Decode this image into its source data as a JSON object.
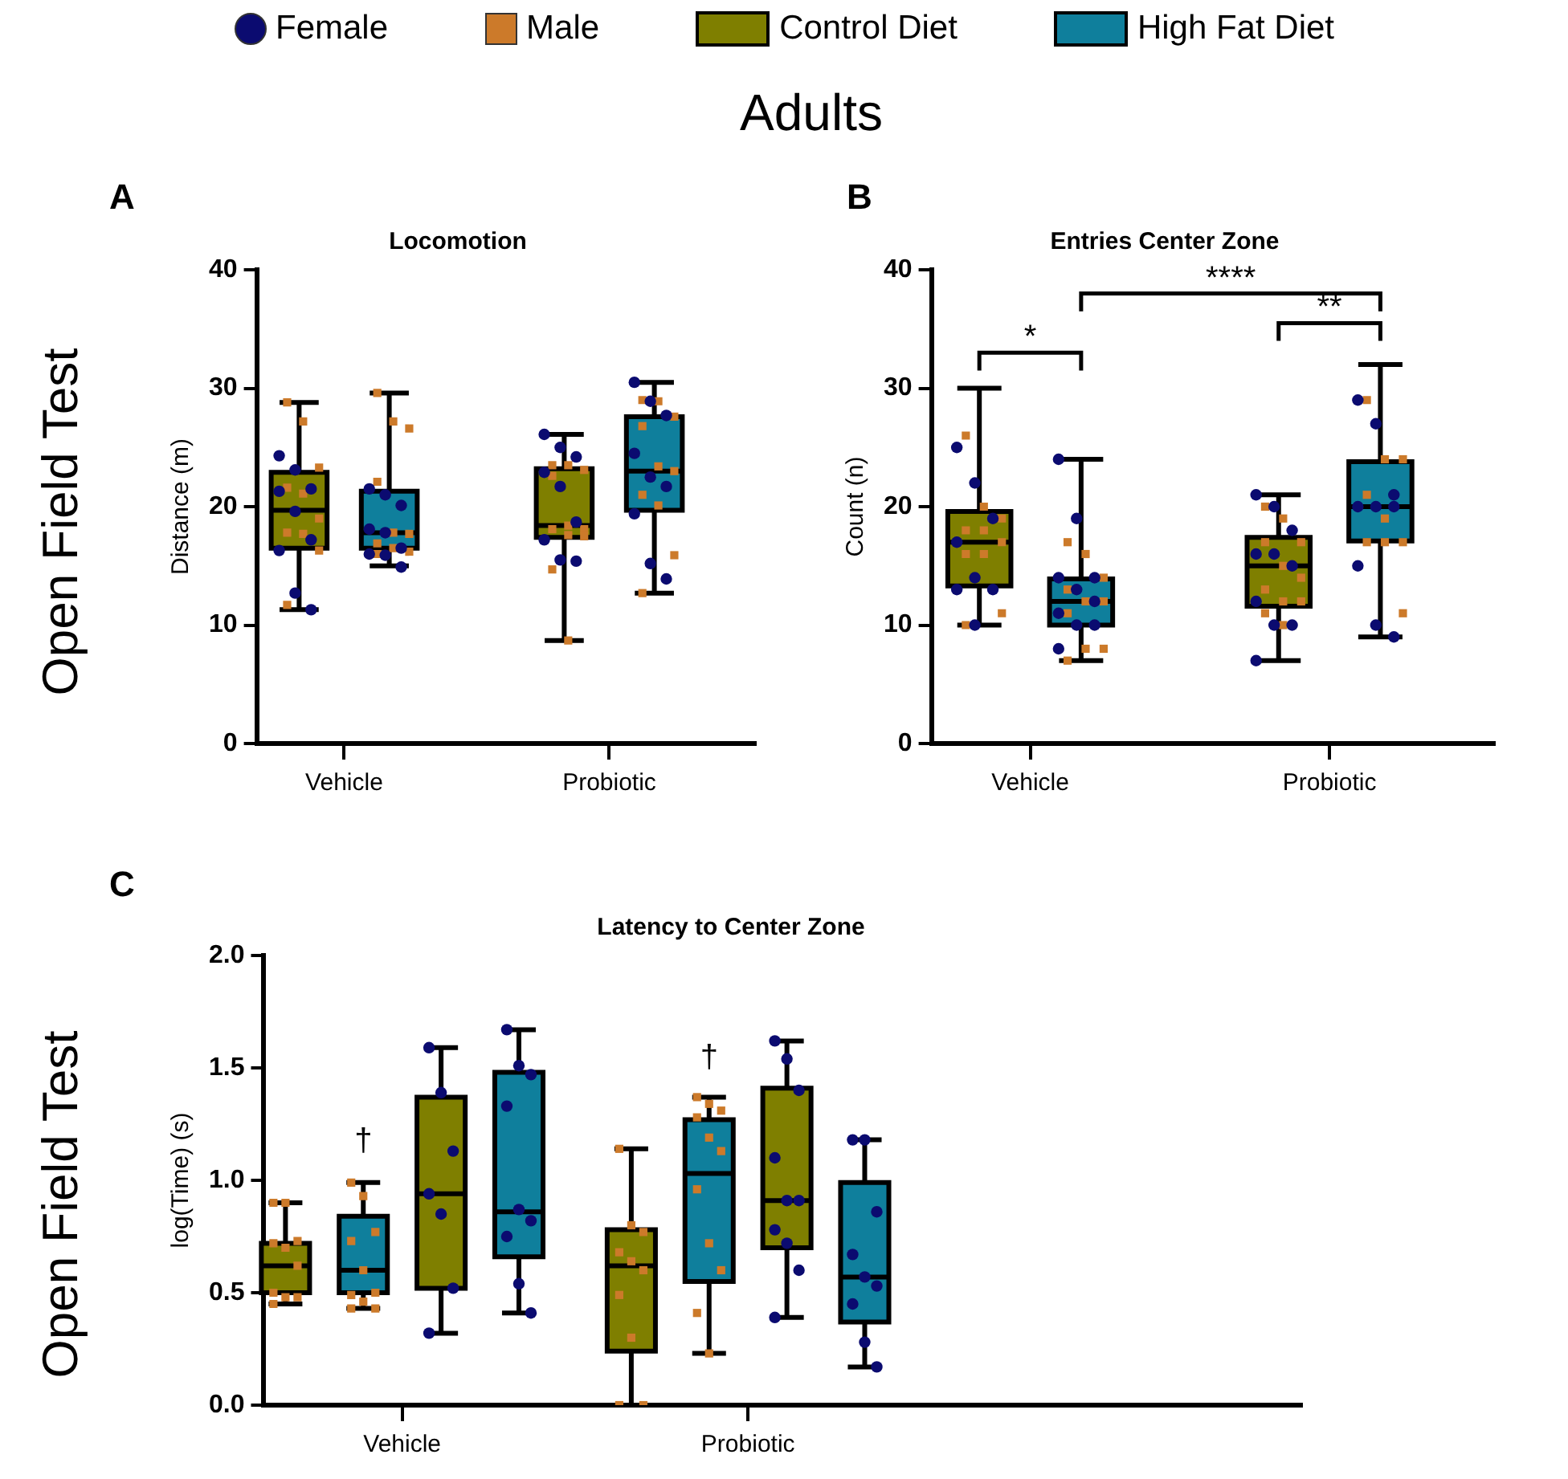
{
  "chart_data": [
    {
      "type": "box",
      "title": "Locomotion",
      "ylabel": "Distance (m)",
      "legend": "top",
      "categories": [
        "Vehicle",
        "Probiotic"
      ],
      "ylim": [
        0,
        40
      ],
      "yticks": [
        0,
        10,
        20,
        30,
        40
      ],
      "annotations": [
        "Adults",
        "A",
        "Open Field Test"
      ],
      "series": [
        {
          "type": "scatter",
          "name": "Female",
          "color": "#0b0b70",
          "marker": "circle",
          "x": [
            "Vehicle",
            "Vehicle",
            "Vehicle",
            "Vehicle",
            "Vehicle",
            "Vehicle",
            "Vehicle",
            "Vehicle",
            "Vehicle",
            "Probiotic",
            "Probiotic",
            "Probiotic",
            "Probiotic",
            "Probiotic",
            "Probiotic",
            "Probiotic",
            "Probiotic",
            "Probiotic"
          ],
          "values": [
            24.3,
            23.1,
            21.5,
            21.3,
            19.6,
            17.2,
            16.3,
            12.7,
            11.3,
            26.1,
            25.0,
            24.2,
            22.9,
            21.7,
            18.7,
            17.2,
            15.5,
            15.4
          ]
        },
        {
          "type": "scatter",
          "name": "Male",
          "color": "#cc7a2a",
          "marker": "square",
          "x": [
            "Vehicle",
            "Vehicle",
            "Vehicle",
            "Vehicle",
            "Vehicle",
            "Vehicle",
            "Vehicle",
            "Vehicle",
            "Vehicle",
            "Vehicle",
            "Probiotic",
            "Probiotic",
            "Probiotic",
            "Probiotic",
            "Probiotic",
            "Probiotic",
            "Probiotic",
            "Probiotic",
            "Probiotic",
            "Probiotic",
            "Probiotic"
          ],
          "values": [
            28.8,
            27.2,
            23.3,
            21.6,
            21.1,
            19.0,
            17.8,
            17.7,
            16.3,
            11.7,
            23.5,
            23.5,
            23.1,
            22.6,
            18.4,
            18.1,
            18.1,
            17.6,
            17.5,
            14.7,
            8.7
          ]
        },
        {
          "name": "Control Diet",
          "color": "#7f7f00",
          "boxes": [
            {
              "low": 11.3,
              "q1": 16.5,
              "median": 19.7,
              "q3": 22.9,
              "high": 28.8
            },
            {
              "low": 8.7,
              "q1": 17.4,
              "median": 18.4,
              "q3": 23.2,
              "high": 26.1
            }
          ]
        },
        {
          "name": "High Fat Diet",
          "color": "#0f7f9c",
          "boxes": [
            {
              "low": 15.0,
              "q1": 16.5,
              "median": 17.8,
              "q3": 21.3,
              "high": 29.6
            },
            {
              "low": 12.7,
              "q1": 19.7,
              "median": 23.0,
              "q3": 27.6,
              "high": 30.5
            }
          ]
        },
        {
          "type": "scatter",
          "color": "#0b0b70",
          "marker": "circle",
          "x": [
            "Vehicle",
            "Vehicle",
            "Vehicle",
            "Vehicle",
            "Vehicle",
            "Vehicle",
            "Vehicle",
            "Vehicle",
            "Vehicle",
            "Probiotic",
            "Probiotic",
            "Probiotic",
            "Probiotic",
            "Probiotic",
            "Probiotic",
            "Probiotic",
            "Probiotic",
            "Probiotic"
          ],
          "values": [
            21.5,
            21.0,
            20.1,
            18.1,
            17.8,
            16.5,
            16.0,
            15.9,
            14.9,
            30.5,
            28.9,
            27.7,
            24.5,
            22.5,
            21.7,
            19.4,
            15.2,
            13.9
          ]
        },
        {
          "type": "scatter",
          "color": "#cc7a2a",
          "marker": "square",
          "x": [
            "Vehicle",
            "Vehicle",
            "Vehicle",
            "Vehicle",
            "Vehicle",
            "Vehicle",
            "Vehicle",
            "Vehicle",
            "Vehicle",
            "Vehicle",
            "Probiotic",
            "Probiotic",
            "Probiotic",
            "Probiotic",
            "Probiotic",
            "Probiotic",
            "Probiotic",
            "Probiotic",
            "Probiotic",
            "Probiotic"
          ],
          "values": [
            29.6,
            27.2,
            26.6,
            22.1,
            17.8,
            17.7,
            16.9,
            16.5,
            16.2,
            16.0,
            29.0,
            28.9,
            27.6,
            26.8,
            23.4,
            23.0,
            21.0,
            20.1,
            15.9,
            12.7
          ]
        }
      ]
    },
    {
      "type": "box",
      "title": "Entries Center Zone",
      "ylabel": "Count (n)",
      "categories": [
        "Vehicle",
        "Probiotic"
      ],
      "ylim": [
        0,
        40
      ],
      "yticks": [
        0,
        10,
        20,
        30,
        40
      ],
      "annotations": [
        "B",
        "*",
        "****",
        "**"
      ],
      "series": [
        {
          "color": "#7f7f00",
          "boxes": [
            {
              "low": 10,
              "q1": 13.3,
              "median": 17,
              "q3": 19.6,
              "high": 30
            },
            {
              "low": 7,
              "q1": 11.6,
              "median": 15,
              "q3": 17.4,
              "high": 21
            }
          ]
        },
        {
          "color": "#0f7f9c",
          "boxes": [
            {
              "low": 7,
              "q1": 10,
              "median": 12,
              "q3": 13.9,
              "high": 24
            },
            {
              "low": 9,
              "q1": 17.1,
              "median": 20,
              "q3": 23.8,
              "high": 32
            }
          ]
        },
        {
          "type": "scatter",
          "color": "#0b0b70",
          "marker": "circle",
          "x": [
            "Vehicle",
            "Vehicle",
            "Vehicle",
            "Vehicle",
            "Vehicle",
            "Vehicle",
            "Vehicle",
            "Vehicle",
            "Probiotic",
            "Probiotic",
            "Probiotic",
            "Probiotic",
            "Probiotic",
            "Probiotic",
            "Probiotic",
            "Probiotic",
            "Probiotic",
            "Probiotic"
          ],
          "values": [
            25,
            22,
            19,
            17,
            14,
            13,
            13,
            10,
            21,
            20,
            18,
            16,
            16,
            15,
            12,
            10,
            10,
            7
          ]
        },
        {
          "type": "scatter",
          "color": "#cc7a2a",
          "marker": "square",
          "x": [
            "Vehicle",
            "Vehicle",
            "Vehicle",
            "Vehicle",
            "Vehicle",
            "Vehicle",
            "Vehicle",
            "Vehicle",
            "Vehicle",
            "Vehicle",
            "Probiotic",
            "Probiotic",
            "Probiotic",
            "Probiotic",
            "Probiotic",
            "Probiotic",
            "Probiotic",
            "Probiotic",
            "Probiotic",
            "Probiotic",
            "Probiotic"
          ],
          "values": [
            26,
            20,
            19,
            18,
            18,
            17,
            16,
            16,
            11,
            10,
            20,
            19,
            17,
            17,
            15,
            14,
            13,
            12,
            12,
            11,
            10
          ]
        },
        {
          "type": "scatter",
          "color": "#0b0b70",
          "marker": "circle",
          "x": [
            "Vehicle",
            "Vehicle",
            "Vehicle",
            "Vehicle",
            "Vehicle",
            "Vehicle",
            "Vehicle",
            "Vehicle",
            "Vehicle",
            "Vehicle",
            "Probiotic",
            "Probiotic",
            "Probiotic",
            "Probiotic",
            "Probiotic",
            "Probiotic",
            "Probiotic",
            "Probiotic",
            "Probiotic"
          ],
          "values": [
            24,
            19,
            14,
            14,
            13,
            12,
            11,
            10,
            10,
            8,
            29,
            27,
            21,
            20,
            20,
            20,
            15,
            10,
            9
          ]
        },
        {
          "type": "scatter",
          "color": "#cc7a2a",
          "marker": "square",
          "x": [
            "Vehicle",
            "Vehicle",
            "Vehicle",
            "Vehicle",
            "Vehicle",
            "Vehicle",
            "Vehicle",
            "Vehicle",
            "Vehicle",
            "Vehicle",
            "Probiotic",
            "Probiotic",
            "Probiotic",
            "Probiotic",
            "Probiotic",
            "Probiotic",
            "Probiotic",
            "Probiotic",
            "Probiotic"
          ],
          "values": [
            17,
            16,
            14,
            13,
            12,
            12,
            11,
            8,
            8,
            7,
            29,
            24,
            24,
            21,
            19,
            17,
            17,
            17,
            11
          ]
        }
      ]
    },
    {
      "type": "box",
      "title": "Latency to Center Zone",
      "ylabel": "log(Time) (s)",
      "categories": [
        "Vehicle",
        "Probiotic"
      ],
      "ylim": [
        0,
        2
      ],
      "yticks": [
        {
          "value": 0,
          "label": "0.0"
        },
        {
          "value": 0.5,
          "label": "0.5"
        },
        {
          "value": 1,
          "label": "1.0"
        },
        {
          "value": 1.5,
          "label": "1.5"
        },
        {
          "value": 2,
          "label": "2.0"
        }
      ],
      "annotations": [
        "C",
        "Open Field Test",
        "†",
        "†"
      ],
      "series": [
        {
          "color": "#7f7f00",
          "boxes": [
            {
              "low": 0.45,
              "q1": 0.5,
              "median": 0.62,
              "q3": 0.72,
              "high": 0.9
            },
            {
              "low": 0,
              "q1": 0.24,
              "median": 0.62,
              "q3": 0.78,
              "high": 1.14
            }
          ]
        },
        {
          "color": "#0f7f9c",
          "boxes": [
            {
              "low": 0.43,
              "q1": 0.5,
              "median": 0.6,
              "q3": 0.84,
              "high": 0.99
            },
            {
              "low": 0.23,
              "q1": 0.55,
              "median": 1.03,
              "q3": 1.27,
              "high": 1.37
            }
          ]
        },
        {
          "color": "#7f7f00",
          "boxes": [
            {
              "low": 0.32,
              "q1": 0.52,
              "median": 0.94,
              "q3": 1.37,
              "high": 1.59
            },
            {
              "low": 0.39,
              "q1": 0.7,
              "median": 0.91,
              "q3": 1.41,
              "high": 1.62
            }
          ]
        },
        {
          "color": "#0f7f9c",
          "boxes": [
            {
              "low": 0.41,
              "q1": 0.66,
              "median": 0.86,
              "q3": 1.48,
              "high": 1.67
            },
            {
              "low": 0.17,
              "q1": 0.37,
              "median": 0.57,
              "q3": 0.99,
              "high": 1.18
            }
          ]
        },
        {
          "type": "scatter",
          "color": "#cc7a2a",
          "marker": "square",
          "x": [
            "Vehicle",
            "Vehicle",
            "Vehicle",
            "Vehicle",
            "Vehicle",
            "Vehicle",
            "Vehicle",
            "Vehicle",
            "Vehicle",
            "Vehicle",
            "Probiotic",
            "Probiotic",
            "Probiotic",
            "Probiotic",
            "Probiotic",
            "Probiotic",
            "Probiotic",
            "Probiotic",
            "Probiotic",
            "Probiotic"
          ],
          "values": [
            0.9,
            0.9,
            0.73,
            0.72,
            0.7,
            0.62,
            0.5,
            0.48,
            0.48,
            0.45,
            1.14,
            0.8,
            0.77,
            0.68,
            0.64,
            0.6,
            0.49,
            0.3,
            0,
            0
          ]
        },
        {
          "type": "scatter",
          "color": "#cc7a2a",
          "marker": "square",
          "x": [
            "Vehicle",
            "Vehicle",
            "Vehicle",
            "Vehicle",
            "Vehicle",
            "Vehicle",
            "Vehicle",
            "Vehicle",
            "Vehicle",
            "Vehicle",
            "Probiotic",
            "Probiotic",
            "Probiotic",
            "Probiotic",
            "Probiotic",
            "Probiotic",
            "Probiotic",
            "Probiotic",
            "Probiotic",
            "Probiotic",
            "Probiotic"
          ],
          "values": [
            0.99,
            0.93,
            0.77,
            0.73,
            0.6,
            0.5,
            0.49,
            0.46,
            0.43,
            0.43,
            1.37,
            1.34,
            1.31,
            1.28,
            1.19,
            1.13,
            0.96,
            0.72,
            0.6,
            0.41,
            0.23
          ]
        },
        {
          "type": "scatter",
          "color": "#0b0b70",
          "marker": "circle",
          "x": [
            "Vehicle",
            "Vehicle",
            "Vehicle",
            "Vehicle",
            "Vehicle",
            "Vehicle",
            "Vehicle",
            "Probiotic",
            "Probiotic",
            "Probiotic",
            "Probiotic",
            "Probiotic",
            "Probiotic",
            "Probiotic",
            "Probiotic",
            "Probiotic",
            "Probiotic"
          ],
          "values": [
            1.59,
            1.39,
            1.13,
            0.94,
            0.85,
            0.52,
            0.32,
            1.62,
            1.54,
            1.4,
            1.1,
            0.91,
            0.91,
            0.78,
            0.72,
            0.6,
            0.39
          ]
        },
        {
          "type": "scatter",
          "color": "#0b0b70",
          "marker": "circle",
          "x": [
            "Vehicle",
            "Vehicle",
            "Vehicle",
            "Vehicle",
            "Vehicle",
            "Vehicle",
            "Vehicle",
            "Vehicle",
            "Vehicle",
            "Probiotic",
            "Probiotic",
            "Probiotic",
            "Probiotic",
            "Probiotic",
            "Probiotic",
            "Probiotic",
            "Probiotic",
            "Probiotic"
          ],
          "values": [
            1.67,
            1.51,
            1.47,
            1.33,
            0.87,
            0.82,
            0.75,
            0.54,
            0.41,
            1.18,
            1.18,
            0.86,
            0.67,
            0.57,
            0.53,
            0.45,
            0.28,
            0.17
          ]
        }
      ]
    }
  ]
}
